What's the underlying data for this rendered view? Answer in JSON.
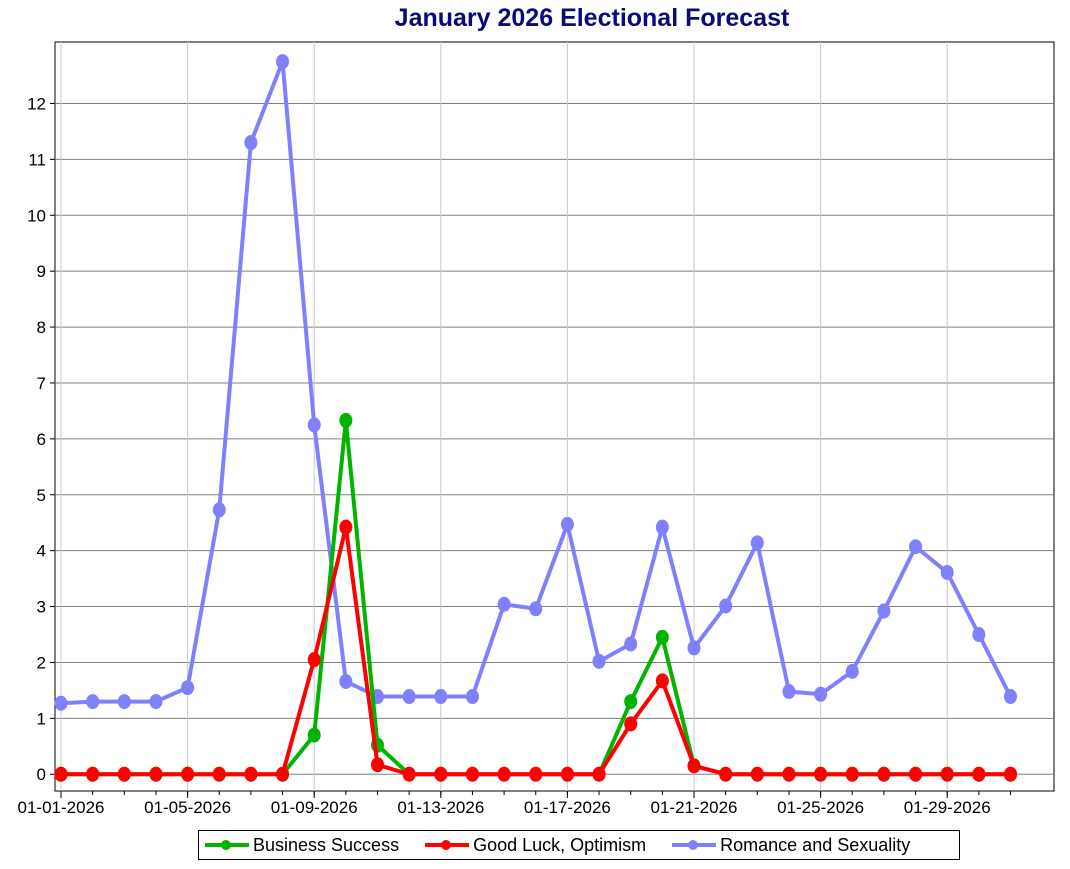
{
  "chart_data": {
    "type": "line",
    "title": "January 2026 Electional Forecast",
    "xlabel": "",
    "ylabel": "",
    "x": [
      "01-01-2026",
      "01-02-2026",
      "01-03-2026",
      "01-04-2026",
      "01-05-2026",
      "01-06-2026",
      "01-07-2026",
      "01-08-2026",
      "01-09-2026",
      "01-10-2026",
      "01-11-2026",
      "01-12-2026",
      "01-13-2026",
      "01-14-2026",
      "01-15-2026",
      "01-16-2026",
      "01-17-2026",
      "01-18-2026",
      "01-19-2026",
      "01-20-2026",
      "01-21-2026",
      "01-22-2026",
      "01-23-2026",
      "01-24-2026",
      "01-25-2026",
      "01-26-2026",
      "01-27-2026",
      "01-28-2026",
      "01-29-2026",
      "01-30-2026",
      "01-31-2026"
    ],
    "x_tick_labels": [
      "01-01-2026",
      "01-05-2026",
      "01-09-2026",
      "01-13-2026",
      "01-17-2026",
      "01-21-2026",
      "01-25-2026",
      "01-29-2026"
    ],
    "y_ticks": [
      "0",
      "1",
      "2",
      "3",
      "4",
      "5",
      "6",
      "7",
      "8",
      "9",
      "10",
      "11",
      "12"
    ],
    "ylim": [
      -0.3,
      13.1
    ],
    "grid": true,
    "legend_position": "bottom",
    "series": [
      {
        "name": "Business Success",
        "color": "#00b400",
        "values": [
          0,
          0,
          0,
          0,
          0,
          0,
          0,
          0,
          0.7,
          6.33,
          0.52,
          0,
          0,
          0,
          0,
          0,
          0,
          0,
          1.3,
          2.45,
          0.15,
          0,
          0,
          0,
          0,
          0,
          0,
          0,
          0,
          0,
          0
        ]
      },
      {
        "name": "Good Luck, Optimism",
        "color": "#ff0000",
        "values": [
          0,
          0,
          0,
          0,
          0,
          0,
          0,
          0,
          2.05,
          4.42,
          0.17,
          0,
          0,
          0,
          0,
          0,
          0,
          0,
          0.9,
          1.67,
          0.15,
          0,
          0,
          0,
          0,
          0,
          0,
          0,
          0,
          0,
          0
        ]
      },
      {
        "name": "Romance and Sexuality",
        "color": "#8080ff",
        "values": [
          1.27,
          1.3,
          1.3,
          1.3,
          1.55,
          4.73,
          11.3,
          12.75,
          6.25,
          1.66,
          1.39,
          1.39,
          1.39,
          1.39,
          3.04,
          2.96,
          4.47,
          2.02,
          2.33,
          4.42,
          2.26,
          3.01,
          4.14,
          1.48,
          1.43,
          1.84,
          2.92,
          4.07,
          3.61,
          2.5,
          1.39
        ]
      }
    ]
  }
}
